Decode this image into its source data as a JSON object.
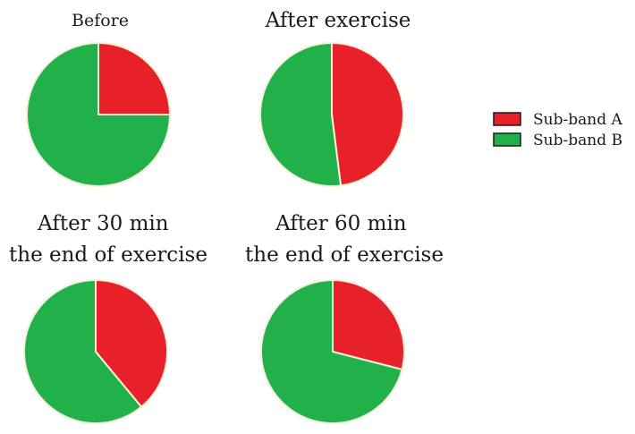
{
  "chart_data": [
    {
      "type": "pie",
      "title": "Before",
      "series": [
        {
          "name": "Sub-band A",
          "value": 25
        },
        {
          "name": "Sub-band B",
          "value": 75
        }
      ]
    },
    {
      "type": "pie",
      "title": "After exercise",
      "series": [
        {
          "name": "Sub-band A",
          "value": 48
        },
        {
          "name": "Sub-band B",
          "value": 52
        }
      ]
    },
    {
      "type": "pie",
      "title": "After 30 min\nthe end of exercise",
      "series": [
        {
          "name": "Sub-band A",
          "value": 39
        },
        {
          "name": "Sub-band B",
          "value": 61
        }
      ]
    },
    {
      "type": "pie",
      "title": "After 60 min\nthe end of exercise",
      "series": [
        {
          "name": "Sub-band A",
          "value": 29
        },
        {
          "name": "Sub-band B",
          "value": 71
        }
      ]
    }
  ],
  "legend": {
    "position": "right",
    "items": [
      {
        "label": "Sub-band A",
        "color": "#e8202a"
      },
      {
        "label": "Sub-band B",
        "color": "#22b04b"
      }
    ]
  },
  "colors": {
    "slice_border": "#f2f0d8",
    "background": "#ffffff"
  }
}
